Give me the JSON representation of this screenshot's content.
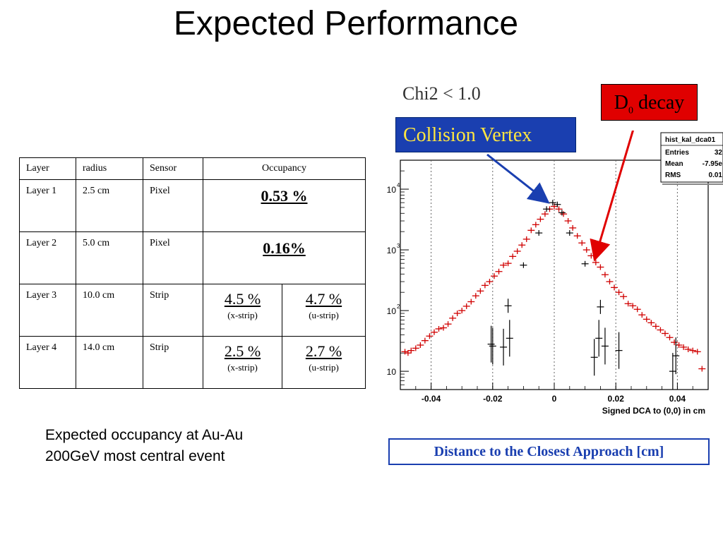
{
  "slide": {
    "title": "Expected Performance",
    "note_line1": "Expected occupancy at Au-Au",
    "note_line2": "200GeV most central event"
  },
  "table": {
    "headers": [
      "Layer",
      "radius",
      "Sensor",
      "Occupancy"
    ],
    "rows": [
      {
        "layer": "Layer 1",
        "radius": "2.5 cm",
        "sensor": "Pixel",
        "occ": "0.53 %"
      },
      {
        "layer": "Layer 2",
        "radius": "5.0 cm",
        "sensor": "Pixel",
        "occ": "0.16%"
      },
      {
        "layer": "Layer 3",
        "radius": "10.0 cm",
        "sensor": "Strip",
        "occ_x": "4.5 %",
        "occ_x_label": "(x-strip)",
        "occ_u": "4.7 %",
        "occ_u_label": "(u-strip)"
      },
      {
        "layer": "Layer 4",
        "radius": "14.0 cm",
        "sensor": "Strip",
        "occ_x": "2.5 %",
        "occ_x_label": "(x-strip)",
        "occ_u": "2.7 %",
        "occ_u_label": "(u-strip)"
      }
    ]
  },
  "annotations": {
    "chi2": "Chi2 < 1.0",
    "collision_vertex": "Collision Vertex",
    "d0_main": "D",
    "d0_sub": "0",
    "d0_rest": " decay",
    "dca_caption": "Distance to the Closest Approach [cm]",
    "collision_arrow_color": "#1a3fb0",
    "d0_arrow_color": "#e00000"
  },
  "chart_data": {
    "type": "scatter",
    "title": "",
    "xlabel": "Signed DCA to (0,0) in cm",
    "ylabel": "",
    "xlim": [
      -0.05,
      0.05
    ],
    "ylim_log": [
      5,
      30000
    ],
    "log_y": true,
    "x_ticks": [
      "-0.04",
      "-0.02",
      "0",
      "0.02",
      "0.04"
    ],
    "y_ticks": [
      "10",
      "10",
      "10",
      "10"
    ],
    "y_ticks_exp": [
      "",
      "2",
      "3",
      "4"
    ],
    "stats_box": {
      "name": "hist_kal_dca01",
      "rows": [
        {
          "label": "Entries",
          "value": "32"
        },
        {
          "label": "Mean",
          "value": "-7.95e"
        },
        {
          "label": "RMS",
          "value": "0.01"
        }
      ]
    },
    "series": [
      {
        "color": "#d00000",
        "x": [
          -0.0485,
          -0.0475,
          -0.0465,
          -0.045,
          -0.0435,
          -0.042,
          -0.0405,
          -0.039,
          -0.0375,
          -0.036,
          -0.0345,
          -0.033,
          -0.0315,
          -0.03,
          -0.0285,
          -0.027,
          -0.0255,
          -0.024,
          -0.0225,
          -0.021,
          -0.0195,
          -0.018,
          -0.0165,
          -0.015,
          -0.0135,
          -0.012,
          -0.0105,
          -0.009,
          -0.0075,
          -0.006,
          -0.0045,
          -0.003,
          -0.0015,
          0.0,
          0.0015,
          0.003,
          0.0045,
          0.006,
          0.0075,
          0.009,
          0.0105,
          0.012,
          0.0135,
          0.015,
          0.0165,
          0.018,
          0.0195,
          0.021,
          0.0225,
          0.024,
          0.0255,
          0.027,
          0.0285,
          0.03,
          0.0315,
          0.033,
          0.0345,
          0.036,
          0.0375,
          0.039,
          0.0405,
          0.042,
          0.0435,
          0.045,
          0.0465,
          0.048
        ],
        "y": [
          21,
          20,
          22,
          24,
          27,
          32,
          38,
          44,
          50,
          52,
          60,
          75,
          90,
          100,
          118,
          140,
          175,
          210,
          260,
          300,
          370,
          440,
          560,
          600,
          780,
          950,
          1200,
          1500,
          2100,
          2600,
          3200,
          3900,
          4700,
          5200,
          4700,
          3900,
          3000,
          2300,
          1700,
          1300,
          1000,
          800,
          620,
          520,
          390,
          300,
          240,
          200,
          170,
          130,
          120,
          105,
          85,
          72,
          63,
          55,
          48,
          42,
          36,
          30,
          27,
          25,
          23,
          22,
          21,
          11
        ],
        "marker": "cross"
      },
      {
        "color": "#000000",
        "x": [
          -0.0005,
          0.001,
          -0.0025,
          0.0025,
          -0.005,
          0.005,
          -0.01,
          0.01,
          -0.015,
          0.015,
          -0.02,
          -0.0165,
          0.0165,
          -0.0145,
          0.0145,
          -0.0205,
          0.021,
          0.013,
          0.0385,
          0.0395
        ],
        "y": [
          6000,
          5600,
          4700,
          4100,
          1900,
          1900,
          560,
          590,
          120,
          115,
          26,
          25,
          26,
          35,
          35,
          28,
          22,
          17,
          10,
          18
        ],
        "marker": "errorbar"
      }
    ]
  }
}
